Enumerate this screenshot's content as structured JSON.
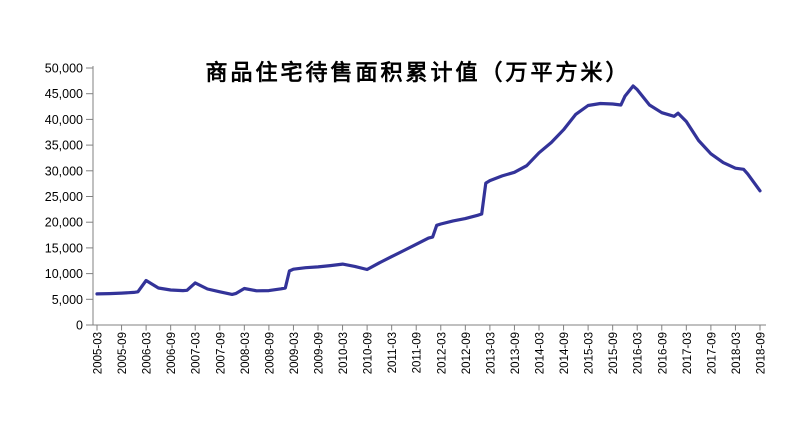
{
  "title": "商品住宅待售面积累计值（万平方米）",
  "colors": {
    "background": "#ffffff",
    "line": "#333399",
    "axis": "#808080",
    "tick": "#808080",
    "label_text": "#000000",
    "title_text": "#000000"
  },
  "chart_data": {
    "type": "line",
    "title": "商品住宅待售面积累计值（万平方米）",
    "xlabel": "",
    "ylabel": "",
    "ylim": [
      0,
      50000
    ],
    "grid": "off",
    "legend": "none",
    "y_ticks": [
      0,
      5000,
      10000,
      15000,
      20000,
      25000,
      30000,
      35000,
      40000,
      45000,
      50000
    ],
    "y_tick_labels": [
      "0",
      "5,000",
      "10,000",
      "15,000",
      "20,000",
      "25,000",
      "30,000",
      "35,000",
      "40,000",
      "45,000",
      "50,000"
    ],
    "x_tick_labels": [
      "2005-03",
      "2005-09",
      "2006-03",
      "2006-09",
      "2007-03",
      "2007-09",
      "2008-03",
      "2008-09",
      "2009-03",
      "2009-09",
      "2010-03",
      "2010-09",
      "2011-03",
      "2011-09",
      "2012-03",
      "2012-09",
      "2013-03",
      "2013-09",
      "2014-03",
      "2014-09",
      "2015-03",
      "2015-09",
      "2016-03",
      "2016-09",
      "2017-03",
      "2017-09",
      "2018-03",
      "2018-09"
    ],
    "x_label_rotation_deg": -90,
    "series": [
      {
        "name": "商品住宅待售面积累计值",
        "color": "#333399",
        "stroke_width": 3.2,
        "points": [
          {
            "date": "2005-03",
            "value": 6050
          },
          {
            "date": "2005-06",
            "value": 6100
          },
          {
            "date": "2005-09",
            "value": 6200
          },
          {
            "date": "2005-12",
            "value": 6350
          },
          {
            "date": "2006-01",
            "value": 6450
          },
          {
            "date": "2006-03",
            "value": 8650
          },
          {
            "date": "2006-06",
            "value": 7200
          },
          {
            "date": "2006-09",
            "value": 6800
          },
          {
            "date": "2006-12",
            "value": 6700
          },
          {
            "date": "2007-01",
            "value": 6750
          },
          {
            "date": "2007-03",
            "value": 8200
          },
          {
            "date": "2007-06",
            "value": 7000
          },
          {
            "date": "2007-09",
            "value": 6450
          },
          {
            "date": "2007-12",
            "value": 5950
          },
          {
            "date": "2008-01",
            "value": 6150
          },
          {
            "date": "2008-03",
            "value": 7100
          },
          {
            "date": "2008-06",
            "value": 6650
          },
          {
            "date": "2008-09",
            "value": 6700
          },
          {
            "date": "2008-12",
            "value": 7050
          },
          {
            "date": "2009-01",
            "value": 7200
          },
          {
            "date": "2009-02",
            "value": 10500
          },
          {
            "date": "2009-03",
            "value": 10850
          },
          {
            "date": "2009-06",
            "value": 11150
          },
          {
            "date": "2009-09",
            "value": 11300
          },
          {
            "date": "2009-12",
            "value": 11550
          },
          {
            "date": "2010-03",
            "value": 11850
          },
          {
            "date": "2010-06",
            "value": 11400
          },
          {
            "date": "2010-09",
            "value": 10800
          },
          {
            "date": "2010-12",
            "value": 12100
          },
          {
            "date": "2011-03",
            "value": 13300
          },
          {
            "date": "2011-06",
            "value": 14500
          },
          {
            "date": "2011-09",
            "value": 15700
          },
          {
            "date": "2011-12",
            "value": 16900
          },
          {
            "date": "2012-01",
            "value": 17100
          },
          {
            "date": "2012-02",
            "value": 19400
          },
          {
            "date": "2012-03",
            "value": 19650
          },
          {
            "date": "2012-06",
            "value": 20250
          },
          {
            "date": "2012-09",
            "value": 20700
          },
          {
            "date": "2012-12",
            "value": 21350
          },
          {
            "date": "2013-01",
            "value": 21600
          },
          {
            "date": "2013-02",
            "value": 27600
          },
          {
            "date": "2013-03",
            "value": 28100
          },
          {
            "date": "2013-06",
            "value": 29000
          },
          {
            "date": "2013-09",
            "value": 29700
          },
          {
            "date": "2013-12",
            "value": 31000
          },
          {
            "date": "2014-03",
            "value": 33500
          },
          {
            "date": "2014-06",
            "value": 35500
          },
          {
            "date": "2014-09",
            "value": 38000
          },
          {
            "date": "2014-12",
            "value": 41000
          },
          {
            "date": "2015-03",
            "value": 42700
          },
          {
            "date": "2015-06",
            "value": 43100
          },
          {
            "date": "2015-09",
            "value": 43000
          },
          {
            "date": "2015-11",
            "value": 42800
          },
          {
            "date": "2015-12",
            "value": 44500
          },
          {
            "date": "2016-02",
            "value": 46500
          },
          {
            "date": "2016-03",
            "value": 45800
          },
          {
            "date": "2016-06",
            "value": 42800
          },
          {
            "date": "2016-09",
            "value": 41300
          },
          {
            "date": "2016-12",
            "value": 40600
          },
          {
            "date": "2017-01",
            "value": 41200
          },
          {
            "date": "2017-03",
            "value": 39600
          },
          {
            "date": "2017-06",
            "value": 35900
          },
          {
            "date": "2017-09",
            "value": 33300
          },
          {
            "date": "2017-12",
            "value": 31600
          },
          {
            "date": "2018-03",
            "value": 30500
          },
          {
            "date": "2018-05",
            "value": 30300
          },
          {
            "date": "2018-06",
            "value": 29400
          },
          {
            "date": "2018-09",
            "value": 26100
          }
        ]
      }
    ],
    "layout": {
      "plot_left_x": 97,
      "plot_right_x": 760,
      "axis_x": 93,
      "axis_bottom_y": 325,
      "axis_top_y": 66,
      "months_start": "2005-03",
      "months_end": "2018-09"
    }
  }
}
